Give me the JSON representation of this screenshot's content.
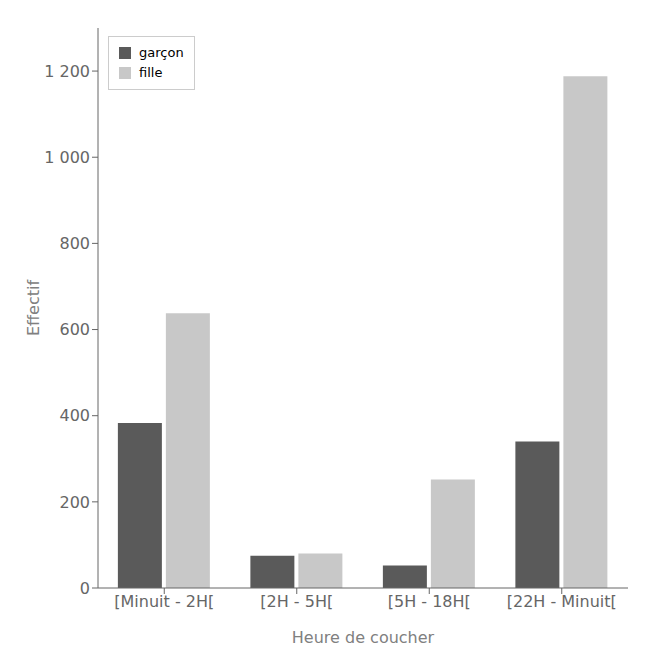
{
  "chart_data": {
    "type": "bar",
    "categories": [
      "[Minuit - 2H[",
      "[2H - 5H[",
      "[5H - 18H[",
      "[22H - Minuit["
    ],
    "series": [
      {
        "name": "garçon",
        "color": "#5a5a5a",
        "values": [
          383,
          75,
          52,
          340
        ]
      },
      {
        "name": "fille",
        "color": "#c8c8c8",
        "values": [
          638,
          80,
          252,
          1188
        ]
      }
    ],
    "xlabel": "Heure de coucher",
    "ylabel": "Effectif",
    "ylim": [
      0,
      1300
    ],
    "yticks": [
      0,
      200,
      400,
      600,
      {
        "value": 800,
        "label": "800"
      },
      {
        "value": 1000,
        "label": "1 000"
      },
      {
        "value": 1200,
        "label": "1 200"
      }
    ],
    "grid": false,
    "legend": "upper left"
  }
}
